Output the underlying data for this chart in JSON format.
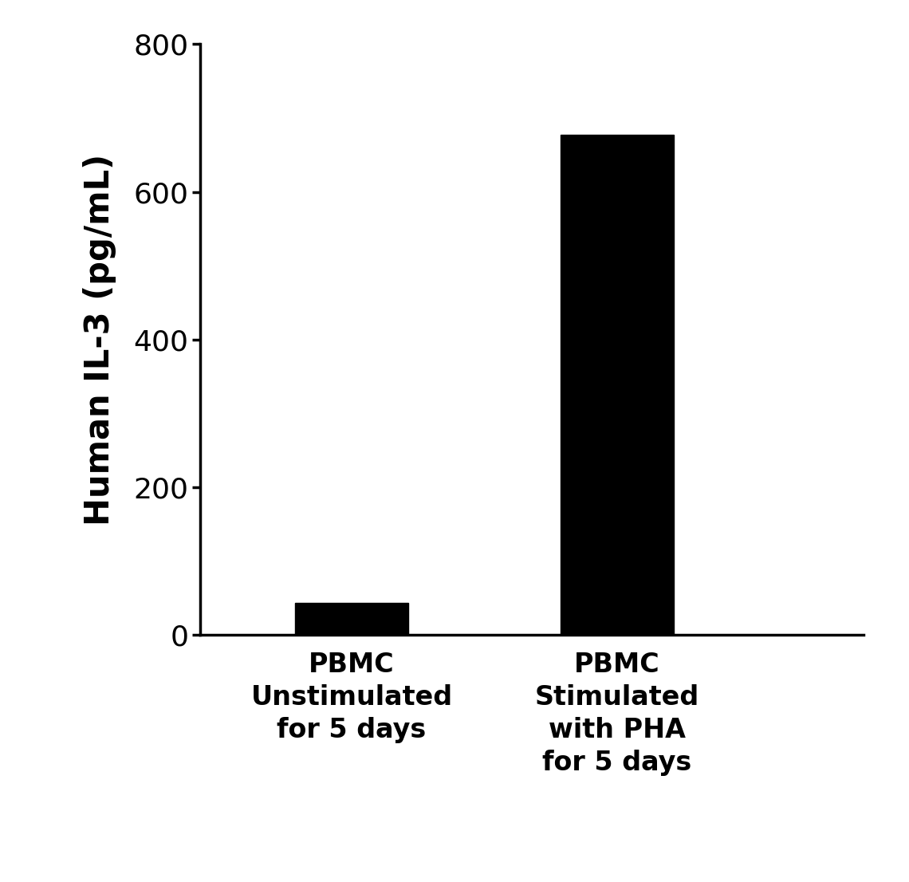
{
  "categories": [
    "PBMC\nUnstimulated\nfor 5 days",
    "PBMC\nStimulated\nwith PHA\nfor 5 days"
  ],
  "values": [
    43.17,
    676.99
  ],
  "bar_colors": [
    "#000000",
    "#000000"
  ],
  "ylabel": "Human IL-3 (pg/mL)",
  "ylim": [
    0,
    800
  ],
  "yticks": [
    0,
    200,
    400,
    600,
    800
  ],
  "bar_width": 0.3,
  "background_color": "#ffffff",
  "ylabel_fontsize": 30,
  "tick_fontsize": 26,
  "xlabel_fontsize": 24,
  "spine_linewidth": 2.5
}
